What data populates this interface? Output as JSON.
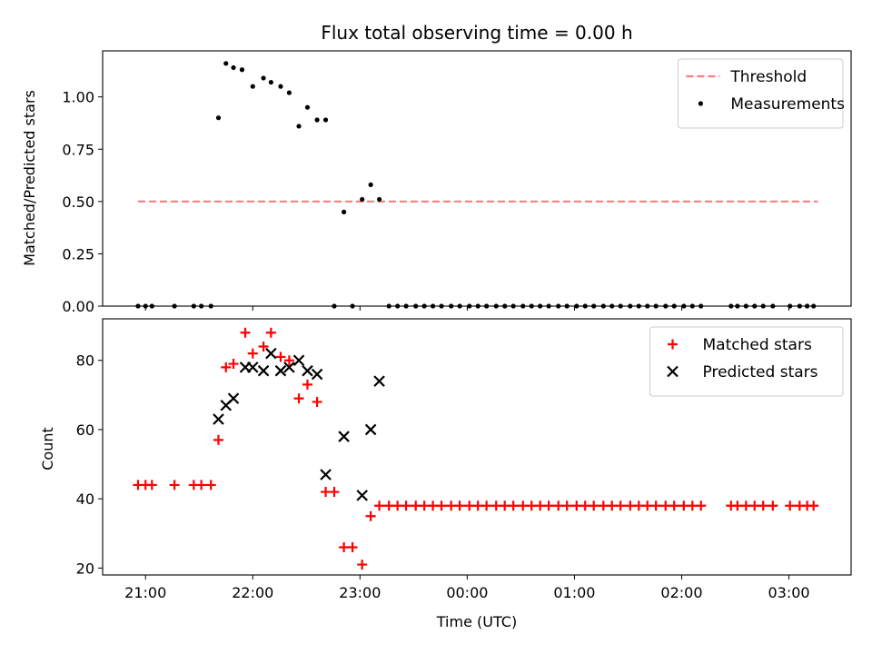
{
  "chart_data": [
    {
      "type": "scatter",
      "title": "Flux total observing time = 0.00 h",
      "xlabel": "",
      "ylabel": "Matched/Predicted stars",
      "ylim": [
        0,
        1.22
      ],
      "yticks": [
        "0.00",
        "0.25",
        "0.50",
        "0.75",
        "1.00"
      ],
      "ytick_values": [
        0,
        0.25,
        0.5,
        0.75,
        1.0
      ],
      "xlim_hours": [
        20.6,
        27.58
      ],
      "legend_position": "top-right",
      "threshold": {
        "name": "Threshold",
        "value": 0.5,
        "x_start": 20.93,
        "x_end": 27.27,
        "color": "#ff7b7b"
      },
      "series": [
        {
          "name": "Measurements",
          "color": "#000000",
          "marker": "dot",
          "x_hours": [
            20.93,
            21.0,
            21.06,
            21.27,
            21.45,
            21.52,
            21.61,
            21.68,
            21.75,
            21.82,
            21.9,
            22.0,
            22.1,
            22.17,
            22.26,
            22.34,
            22.43,
            22.51,
            22.6,
            22.68,
            22.76,
            22.85,
            22.93,
            23.02,
            23.1,
            23.18,
            23.27,
            23.35,
            23.43,
            23.52,
            23.6,
            23.68,
            23.76,
            23.85,
            23.93,
            24.02,
            24.1,
            24.18,
            24.27,
            24.35,
            24.43,
            24.52,
            24.6,
            24.68,
            24.76,
            24.85,
            24.93,
            25.02,
            25.1,
            25.18,
            25.27,
            25.35,
            25.43,
            25.52,
            25.6,
            25.68,
            25.76,
            25.85,
            25.93,
            26.02,
            26.1,
            26.18,
            26.46,
            26.52,
            26.6,
            26.68,
            26.76,
            26.85,
            27.01,
            27.1,
            27.17,
            27.23
          ],
          "y": [
            0,
            0,
            0,
            0,
            0,
            0,
            0,
            0.9,
            1.16,
            1.14,
            1.13,
            1.05,
            1.09,
            1.07,
            1.05,
            1.02,
            0.86,
            0.95,
            0.89,
            0.89,
            0,
            0.45,
            0,
            0.51,
            0.58,
            0.51,
            0,
            0,
            0,
            0,
            0,
            0,
            0,
            0,
            0,
            0,
            0,
            0,
            0,
            0,
            0,
            0,
            0,
            0,
            0,
            0,
            0,
            0,
            0,
            0,
            0,
            0,
            0,
            0,
            0,
            0,
            0,
            0,
            0,
            0,
            0,
            0,
            0,
            0,
            0,
            0,
            0,
            0,
            0,
            0,
            0,
            0
          ]
        }
      ]
    },
    {
      "type": "scatter",
      "title": "",
      "xlabel": "Time (UTC)",
      "ylabel": "Count",
      "ylim": [
        18,
        92
      ],
      "yticks": [
        "20",
        "40",
        "60",
        "80"
      ],
      "ytick_values": [
        20,
        40,
        60,
        80
      ],
      "xlim_hours": [
        20.6,
        27.58
      ],
      "xticks": [
        "21:00",
        "22:00",
        "23:00",
        "00:00",
        "01:00",
        "02:00",
        "03:00"
      ],
      "xtick_hours": [
        21,
        22,
        23,
        24,
        25,
        26,
        27
      ],
      "legend_position": "top-right",
      "series": [
        {
          "name": "Matched stars",
          "color": "#ff0000",
          "marker": "plus",
          "x_hours": [
            20.93,
            21.0,
            21.06,
            21.27,
            21.45,
            21.52,
            21.61,
            21.68,
            21.75,
            21.82,
            21.93,
            22.0,
            22.1,
            22.17,
            22.26,
            22.34,
            22.43,
            22.51,
            22.6,
            22.68,
            22.76,
            22.85,
            22.93,
            23.02,
            23.1,
            23.18,
            23.27,
            23.35,
            23.43,
            23.52,
            23.6,
            23.68,
            23.76,
            23.85,
            23.93,
            24.02,
            24.1,
            24.18,
            24.27,
            24.35,
            24.43,
            24.52,
            24.6,
            24.68,
            24.76,
            24.85,
            24.93,
            25.02,
            25.1,
            25.18,
            25.27,
            25.35,
            25.43,
            25.52,
            25.6,
            25.68,
            25.76,
            25.85,
            25.93,
            26.02,
            26.1,
            26.18,
            26.46,
            26.52,
            26.6,
            26.68,
            26.76,
            26.85,
            27.01,
            27.1,
            27.17,
            27.23
          ],
          "y": [
            44,
            44,
            44,
            44,
            44,
            44,
            44,
            57,
            78,
            79,
            88,
            82,
            84,
            88,
            81,
            80,
            69,
            73,
            68,
            42,
            42,
            26,
            26,
            21,
            35,
            38,
            38,
            38,
            38,
            38,
            38,
            38,
            38,
            38,
            38,
            38,
            38,
            38,
            38,
            38,
            38,
            38,
            38,
            38,
            38,
            38,
            38,
            38,
            38,
            38,
            38,
            38,
            38,
            38,
            38,
            38,
            38,
            38,
            38,
            38,
            38,
            38,
            38,
            38,
            38,
            38,
            38,
            38,
            38,
            38,
            38,
            38
          ]
        },
        {
          "name": "Predicted stars",
          "color": "#000000",
          "marker": "x",
          "x_hours": [
            21.68,
            21.75,
            21.82,
            21.93,
            22.0,
            22.1,
            22.17,
            22.26,
            22.34,
            22.43,
            22.51,
            22.6,
            22.68,
            22.85,
            23.02,
            23.1,
            23.18
          ],
          "y": [
            63,
            67,
            69,
            78,
            78,
            77,
            82,
            77,
            78,
            80,
            77,
            76,
            47,
            58,
            41,
            60,
            74
          ]
        }
      ]
    }
  ]
}
